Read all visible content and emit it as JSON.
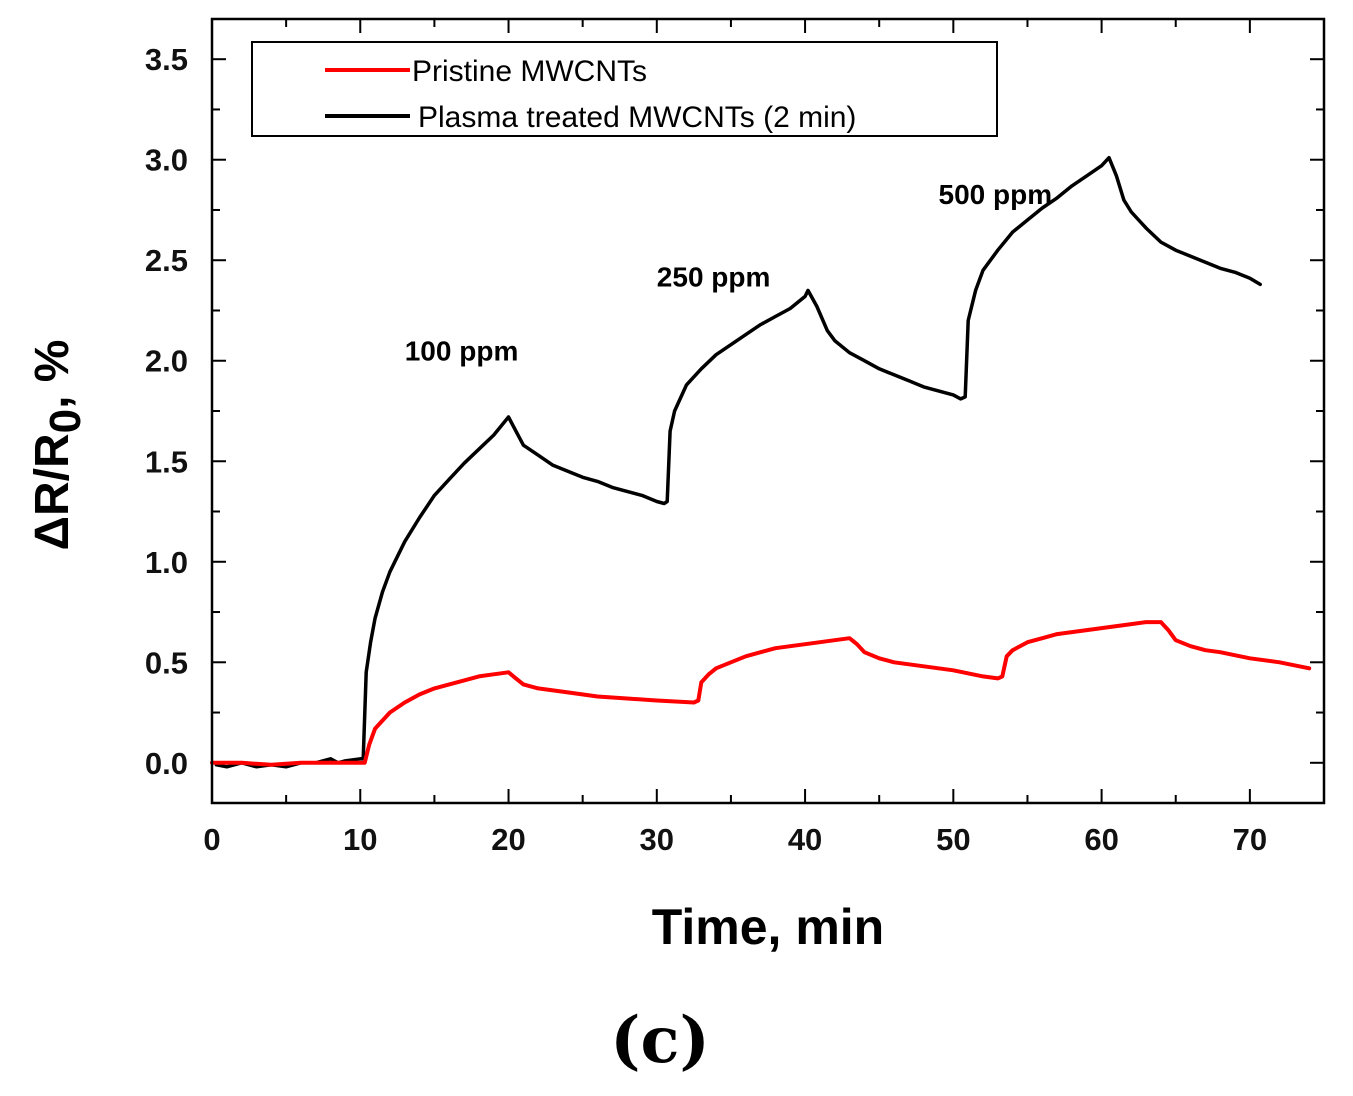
{
  "chart_data": {
    "type": "line",
    "panel_label": "(c)",
    "xlabel": "Time, min",
    "ylabel_main": "ΔR/R",
    "ylabel_sub": "0",
    "ylabel_suffix": ", %",
    "xlim": [
      0,
      75
    ],
    "ylim": [
      -0.2,
      3.7
    ],
    "x_ticks": [
      0,
      10,
      20,
      30,
      40,
      50,
      60,
      70
    ],
    "x_tick_labels": [
      "0",
      "10",
      "20",
      "30",
      "40",
      "50",
      "60",
      "70"
    ],
    "y_ticks": [
      0.0,
      0.5,
      1.0,
      1.5,
      2.0,
      2.5,
      3.0,
      3.5
    ],
    "y_tick_labels": [
      "0.0",
      "0.5",
      "1.0",
      "1.5",
      "2.0",
      "2.5",
      "3.0",
      "3.5"
    ],
    "legend": [
      "Pristine MWCNTs",
      "Plasma treated MWCNTs (2 min)"
    ],
    "annotations": [
      {
        "text": "100 ppm",
        "x": 13,
        "y": 2.0
      },
      {
        "text": "250 ppm",
        "x": 30,
        "y": 2.37
      },
      {
        "text": "500 ppm",
        "x": 49,
        "y": 2.78
      }
    ],
    "series": [
      {
        "name": "Pristine MWCNTs",
        "color": "#ff0000",
        "points": [
          [
            0,
            0
          ],
          [
            2,
            0
          ],
          [
            4,
            -0.01
          ],
          [
            6,
            0
          ],
          [
            8,
            0
          ],
          [
            10,
            0
          ],
          [
            10.3,
            0.0
          ],
          [
            10.6,
            0.09
          ],
          [
            11,
            0.17
          ],
          [
            12,
            0.25
          ],
          [
            13,
            0.3
          ],
          [
            14,
            0.34
          ],
          [
            15,
            0.37
          ],
          [
            16,
            0.39
          ],
          [
            17,
            0.41
          ],
          [
            18,
            0.43
          ],
          [
            19,
            0.44
          ],
          [
            20,
            0.45
          ],
          [
            20.5,
            0.42
          ],
          [
            21,
            0.39
          ],
          [
            22,
            0.37
          ],
          [
            24,
            0.35
          ],
          [
            26,
            0.33
          ],
          [
            28,
            0.32
          ],
          [
            30,
            0.31
          ],
          [
            32.5,
            0.3
          ],
          [
            32.8,
            0.31
          ],
          [
            33,
            0.4
          ],
          [
            33.5,
            0.44
          ],
          [
            34,
            0.47
          ],
          [
            35,
            0.5
          ],
          [
            36,
            0.53
          ],
          [
            37,
            0.55
          ],
          [
            38,
            0.57
          ],
          [
            39,
            0.58
          ],
          [
            40,
            0.59
          ],
          [
            41,
            0.6
          ],
          [
            42,
            0.61
          ],
          [
            43,
            0.62
          ],
          [
            43.5,
            0.59
          ],
          [
            44,
            0.55
          ],
          [
            45,
            0.52
          ],
          [
            46,
            0.5
          ],
          [
            48,
            0.48
          ],
          [
            50,
            0.46
          ],
          [
            52,
            0.43
          ],
          [
            53,
            0.42
          ],
          [
            53.3,
            0.43
          ],
          [
            53.6,
            0.53
          ],
          [
            54,
            0.56
          ],
          [
            55,
            0.6
          ],
          [
            56,
            0.62
          ],
          [
            57,
            0.64
          ],
          [
            58,
            0.65
          ],
          [
            59,
            0.66
          ],
          [
            60,
            0.67
          ],
          [
            61,
            0.68
          ],
          [
            62,
            0.69
          ],
          [
            63,
            0.7
          ],
          [
            64,
            0.7
          ],
          [
            64.5,
            0.66
          ],
          [
            65,
            0.61
          ],
          [
            66,
            0.58
          ],
          [
            67,
            0.56
          ],
          [
            68,
            0.55
          ],
          [
            70,
            0.52
          ],
          [
            72,
            0.5
          ],
          [
            74,
            0.47
          ]
        ]
      },
      {
        "name": "Plasma treated MWCNTs (2 min)",
        "color": "#000000",
        "points": [
          [
            0.3,
            -0.01
          ],
          [
            1,
            -0.02
          ],
          [
            2,
            0.0
          ],
          [
            2.5,
            -0.01
          ],
          [
            3,
            -0.02
          ],
          [
            4,
            -0.01
          ],
          [
            5,
            -0.02
          ],
          [
            6,
            0.0
          ],
          [
            7,
            0.0
          ],
          [
            8,
            0.02
          ],
          [
            8.5,
            0.0
          ],
          [
            9,
            0.01
          ],
          [
            10,
            0.02
          ],
          [
            10.2,
            0.02
          ],
          [
            10.4,
            0.45
          ],
          [
            10.7,
            0.6
          ],
          [
            11,
            0.72
          ],
          [
            11.5,
            0.85
          ],
          [
            12,
            0.95
          ],
          [
            13,
            1.1
          ],
          [
            14,
            1.22
          ],
          [
            15,
            1.33
          ],
          [
            16,
            1.41
          ],
          [
            17,
            1.49
          ],
          [
            18,
            1.56
          ],
          [
            19,
            1.63
          ],
          [
            20,
            1.72
          ],
          [
            20.5,
            1.65
          ],
          [
            21,
            1.58
          ],
          [
            22,
            1.53
          ],
          [
            23,
            1.48
          ],
          [
            24,
            1.45
          ],
          [
            25,
            1.42
          ],
          [
            26,
            1.4
          ],
          [
            27,
            1.37
          ],
          [
            28,
            1.35
          ],
          [
            29,
            1.33
          ],
          [
            30,
            1.3
          ],
          [
            30.5,
            1.29
          ],
          [
            30.7,
            1.3
          ],
          [
            30.9,
            1.65
          ],
          [
            31.2,
            1.75
          ],
          [
            32,
            1.88
          ],
          [
            33,
            1.96
          ],
          [
            34,
            2.03
          ],
          [
            35,
            2.08
          ],
          [
            36,
            2.13
          ],
          [
            37,
            2.18
          ],
          [
            38,
            2.22
          ],
          [
            39,
            2.26
          ],
          [
            40,
            2.32
          ],
          [
            40.2,
            2.35
          ],
          [
            40.8,
            2.27
          ],
          [
            41.5,
            2.15
          ],
          [
            42,
            2.1
          ],
          [
            43,
            2.04
          ],
          [
            44,
            2.0
          ],
          [
            45,
            1.96
          ],
          [
            46,
            1.93
          ],
          [
            47,
            1.9
          ],
          [
            48,
            1.87
          ],
          [
            49,
            1.85
          ],
          [
            50,
            1.83
          ],
          [
            50.5,
            1.81
          ],
          [
            50.8,
            1.82
          ],
          [
            51,
            2.2
          ],
          [
            51.5,
            2.35
          ],
          [
            52,
            2.45
          ],
          [
            53,
            2.55
          ],
          [
            54,
            2.64
          ],
          [
            55,
            2.7
          ],
          [
            56,
            2.76
          ],
          [
            57,
            2.81
          ],
          [
            58,
            2.87
          ],
          [
            59,
            2.92
          ],
          [
            60,
            2.97
          ],
          [
            60.5,
            3.01
          ],
          [
            61,
            2.92
          ],
          [
            61.5,
            2.8
          ],
          [
            62,
            2.74
          ],
          [
            63,
            2.66
          ],
          [
            64,
            2.59
          ],
          [
            65,
            2.55
          ],
          [
            66,
            2.52
          ],
          [
            67,
            2.49
          ],
          [
            68,
            2.46
          ],
          [
            69,
            2.44
          ],
          [
            70,
            2.41
          ],
          [
            70.7,
            2.38
          ]
        ]
      }
    ]
  }
}
